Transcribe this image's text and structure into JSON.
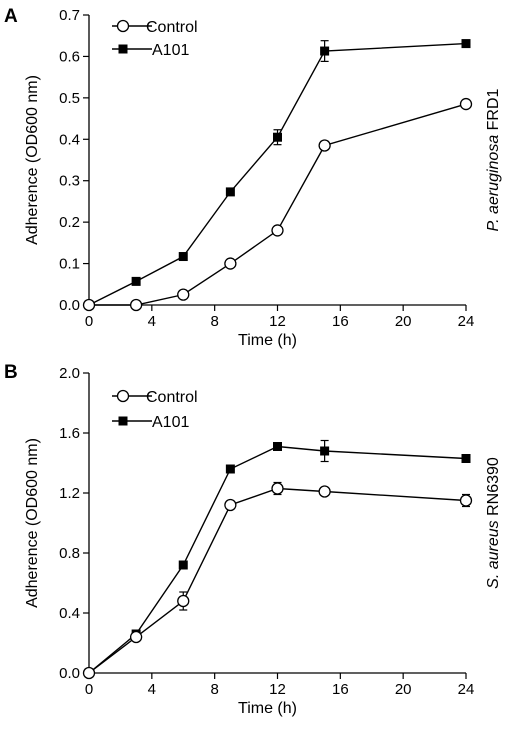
{
  "chart_data": [
    {
      "type": "line",
      "panel_label": "A",
      "side_label_italic": "P. aeruginosa",
      "side_label": " FRD1",
      "xlabel": "Time (h)",
      "ylabel": "Adherence (OD600 nm)",
      "xlim": [
        0,
        24
      ],
      "ylim": [
        0,
        0.7
      ],
      "xticks": [
        0,
        4,
        8,
        12,
        16,
        20,
        24
      ],
      "yticks": [
        0.0,
        0.1,
        0.2,
        0.3,
        0.4,
        0.5,
        0.6,
        0.7
      ],
      "ytick_labels": [
        "0.0",
        "0.1",
        "0.2",
        "0.3",
        "0.4",
        "0.5",
        "0.6",
        "0.7"
      ],
      "legend_position": "top-left",
      "grid": false,
      "series": [
        {
          "name": "Control",
          "marker": "open-circle",
          "x": [
            0,
            3,
            6,
            9,
            12,
            15,
            24
          ],
          "y": [
            0.0,
            0.0,
            0.025,
            0.1,
            0.18,
            0.385,
            0.485
          ],
          "err": [
            0,
            0,
            0,
            0,
            0.005,
            0.01,
            0
          ]
        },
        {
          "name": "A101",
          "marker": "filled-square",
          "x": [
            0,
            3,
            6,
            9,
            12,
            15,
            24
          ],
          "y": [
            0.0,
            0.057,
            0.117,
            0.273,
            0.405,
            0.613,
            0.631
          ],
          "err": [
            0,
            0,
            0,
            0,
            0.018,
            0.025,
            0.008
          ]
        }
      ]
    },
    {
      "type": "line",
      "panel_label": "B",
      "side_label_italic": "S. aureus",
      "side_label": " RN6390",
      "xlabel": "Time (h)",
      "ylabel": "Adherence (OD600 nm)",
      "xlim": [
        0,
        24
      ],
      "ylim": [
        0,
        2.0
      ],
      "xticks": [
        0,
        4,
        8,
        12,
        16,
        20,
        24
      ],
      "yticks": [
        0.0,
        0.4,
        0.8,
        1.2,
        1.6,
        2.0
      ],
      "ytick_labels": [
        "0.0",
        "0.4",
        "0.8",
        "1.2",
        "1.6",
        "2.0"
      ],
      "legend_position": "top-left",
      "grid": false,
      "series": [
        {
          "name": "Control",
          "marker": "open-circle",
          "x": [
            0,
            3,
            6,
            9,
            12,
            15,
            24
          ],
          "y": [
            0.0,
            0.24,
            0.48,
            1.12,
            1.23,
            1.21,
            1.15
          ],
          "err": [
            0,
            0,
            0.06,
            0.02,
            0.04,
            0.01,
            0.04
          ]
        },
        {
          "name": "A101",
          "marker": "filled-square",
          "x": [
            0,
            3,
            6,
            9,
            12,
            15,
            24
          ],
          "y": [
            0.0,
            0.26,
            0.72,
            1.36,
            1.51,
            1.48,
            1.43
          ],
          "err": [
            0,
            0,
            0.02,
            0.02,
            0.02,
            0.07,
            0.02
          ]
        }
      ]
    }
  ]
}
